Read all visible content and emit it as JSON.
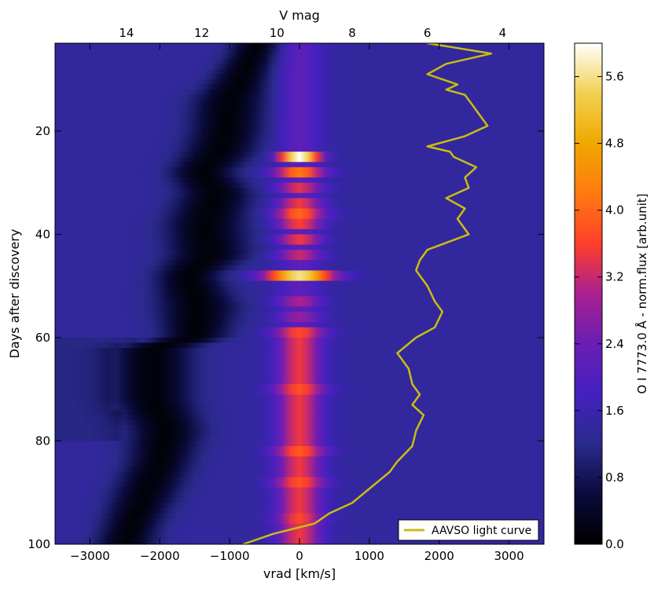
{
  "chart_data": {
    "type": "heatmap",
    "xlabel": "vrad [km/s]",
    "ylabel": "Days after discovery",
    "top_xlabel": "V mag",
    "colorbar_label": "O I 7773.0 Å - norm.flux [arb.unit]",
    "xlim": [
      -3500,
      3500
    ],
    "ylim": [
      100,
      3
    ],
    "x_ticks": [
      -3000,
      -2000,
      -1000,
      0,
      1000,
      2000,
      3000
    ],
    "x_tick_labels": [
      "−3000",
      "−2000",
      "−1000",
      "0",
      "1000",
      "2000",
      "3000"
    ],
    "y_ticks": [
      20,
      40,
      60,
      80,
      100
    ],
    "y_tick_labels": [
      "20",
      "40",
      "60",
      "80",
      "100"
    ],
    "top_ticks": [
      14,
      12,
      10,
      8,
      6,
      4
    ],
    "top_tick_labels": [
      "14",
      "12",
      "10",
      "8",
      "6",
      "4"
    ],
    "top_lim": [
      15.9,
      2.9
    ],
    "colorbar_ticks": [
      0.0,
      0.8,
      1.6,
      2.4,
      3.2,
      4.0,
      4.8,
      5.6
    ],
    "colorbar_tick_labels": [
      "0.0",
      "0.8",
      "1.6",
      "2.4",
      "3.2",
      "4.0",
      "4.8",
      "5.6"
    ],
    "colorbar_range": [
      0.0,
      6.0
    ],
    "colormap": [
      "#000000",
      "#0a0a3c",
      "#2a2a8c",
      "#4420c0",
      "#6a1eb4",
      "#aa2090",
      "#ff3e2a",
      "#ff7a10",
      "#f0a800",
      "#f2d050",
      "#ffffff"
    ],
    "absorption_trough": {
      "days": [
        3,
        6,
        10,
        14,
        20,
        24,
        28,
        32,
        38,
        44,
        48,
        54,
        60,
        62,
        66,
        72,
        78,
        84,
        90,
        96,
        100
      ],
      "vrad": [
        -600,
        -700,
        -850,
        -1000,
        -1050,
        -1150,
        -1400,
        -1200,
        -1350,
        -1300,
        -1600,
        -1450,
        -1500,
        -2100,
        -2100,
        -2100,
        -1900,
        -2000,
        -2200,
        -2400,
        -2500
      ],
      "width": [
        350,
        350,
        400,
        500,
        500,
        500,
        450,
        500,
        550,
        550,
        450,
        550,
        450,
        550,
        550,
        550,
        500,
        450,
        450,
        400,
        400
      ]
    },
    "emission_bands": [
      {
        "day": 25,
        "flux": 6.0,
        "width": 350
      },
      {
        "day": 28,
        "flux": 4.0,
        "width": 450
      },
      {
        "day": 31,
        "flux": 3.2,
        "width": 400
      },
      {
        "day": 34,
        "flux": 3.3,
        "width": 400
      },
      {
        "day": 36,
        "flux": 3.8,
        "width": 450
      },
      {
        "day": 38,
        "flux": 3.4,
        "width": 400
      },
      {
        "day": 41,
        "flux": 3.3,
        "width": 400
      },
      {
        "day": 44,
        "flux": 3.0,
        "width": 400
      },
      {
        "day": 48,
        "flux": 5.4,
        "width": 600
      },
      {
        "day": 53,
        "flux": 2.8,
        "width": 400
      },
      {
        "day": 56,
        "flux": 2.6,
        "width": 400
      },
      {
        "day": 59,
        "flux": 3.5,
        "width": 450
      },
      {
        "day": 70,
        "flux": 3.6,
        "width": 450
      },
      {
        "day": 82,
        "flux": 3.7,
        "width": 450
      },
      {
        "day": 88,
        "flux": 3.6,
        "width": 450
      },
      {
        "day": 95,
        "flux": 3.5,
        "width": 400
      }
    ],
    "series": [
      {
        "name": "AAVSO light curve",
        "color": "#c8be10",
        "days": [
          3,
          5,
          7,
          9,
          11,
          12,
          13,
          15,
          17,
          19,
          21,
          23,
          24,
          25,
          27,
          29,
          31,
          33,
          35,
          37,
          40,
          43,
          45,
          47,
          50,
          53,
          55,
          58,
          60,
          63,
          66,
          69,
          71,
          73,
          75,
          78,
          81,
          84,
          86,
          89,
          92,
          94,
          96,
          98,
          100
        ],
        "vmag": [
          6.0,
          4.3,
          5.5,
          6.0,
          5.2,
          5.5,
          5.0,
          4.8,
          4.6,
          4.4,
          5.0,
          6.0,
          5.4,
          5.3,
          4.7,
          5.0,
          4.9,
          5.5,
          5.0,
          5.2,
          4.9,
          6.0,
          6.2,
          6.3,
          6.0,
          5.8,
          5.6,
          5.8,
          6.3,
          6.8,
          6.5,
          6.4,
          6.2,
          6.4,
          6.1,
          6.3,
          6.4,
          6.8,
          7.0,
          7.5,
          8.0,
          8.6,
          9.0,
          10.1,
          10.9
        ]
      }
    ],
    "legend": {
      "position": "lower-right",
      "entries": [
        "AAVSO light curve"
      ]
    },
    "grid": false
  }
}
